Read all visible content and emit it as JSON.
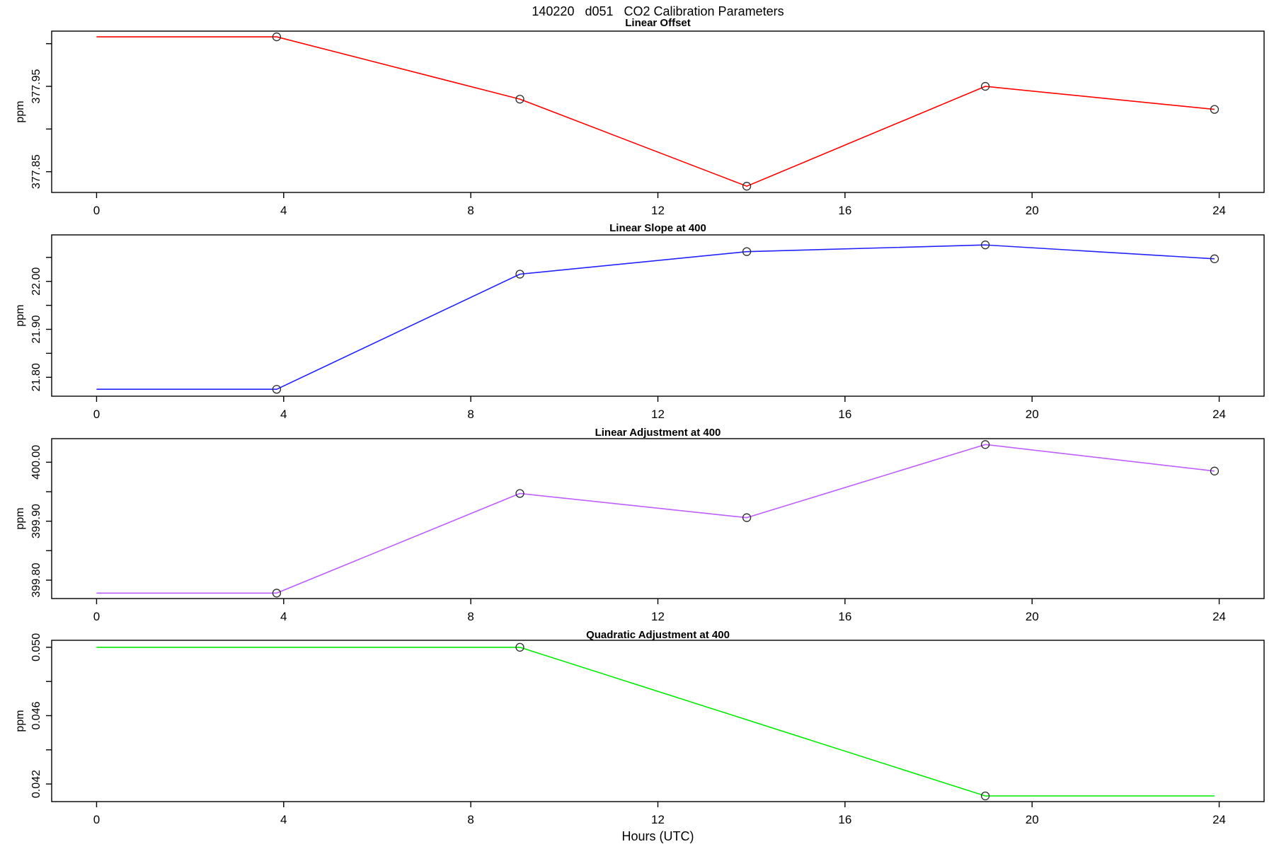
{
  "page": {
    "title": "140220   d051   CO2 Calibration Parameters",
    "xlabel": "Hours (UTC)"
  },
  "chart_data": [
    {
      "type": "line",
      "title": "Linear Offset",
      "ylabel": "ppm",
      "color": "#ff0000",
      "series_name": "linear-offset-line",
      "grid": false,
      "legend": "none",
      "xlim": [
        -0.96,
        24.96
      ],
      "ylim": [
        377.8257,
        378.0147
      ],
      "xticks": [
        0,
        4,
        8,
        12,
        16,
        20,
        24
      ],
      "yticks": [
        {
          "value": 377.85,
          "label": "377.85"
        },
        {
          "value": 377.9,
          "label": ""
        },
        {
          "value": 377.95,
          "label": "377.95"
        },
        {
          "value": 378.0,
          "label": ""
        }
      ],
      "points": [
        {
          "x": 0.0,
          "y": 378.008,
          "marker": false
        },
        {
          "x": 3.85,
          "y": 378.008,
          "marker": true
        },
        {
          "x": 9.05,
          "y": 377.935,
          "marker": true
        },
        {
          "x": 13.9,
          "y": 377.833,
          "marker": true
        },
        {
          "x": 19.0,
          "y": 377.95,
          "marker": true
        },
        {
          "x": 23.9,
          "y": 377.923,
          "marker": true
        }
      ]
    },
    {
      "type": "line",
      "title": "Linear Slope at 400",
      "ylabel": "ppm",
      "color": "#2222ff",
      "series_name": "linear-slope-line",
      "grid": false,
      "legend": "none",
      "xlim": [
        -0.96,
        24.96
      ],
      "ylim": [
        21.7606,
        22.0969
      ],
      "xticks": [
        0,
        4,
        8,
        12,
        16,
        20,
        24
      ],
      "yticks": [
        {
          "value": 21.8,
          "label": "21.80"
        },
        {
          "value": 21.85,
          "label": ""
        },
        {
          "value": 21.9,
          "label": "21.90"
        },
        {
          "value": 21.95,
          "label": ""
        },
        {
          "value": 22.0,
          "label": "22.00"
        },
        {
          "value": 22.05,
          "label": ""
        }
      ],
      "points": [
        {
          "x": 0.0,
          "y": 21.775,
          "marker": false
        },
        {
          "x": 3.85,
          "y": 21.775,
          "marker": true
        },
        {
          "x": 9.05,
          "y": 22.015,
          "marker": true
        },
        {
          "x": 13.9,
          "y": 22.062,
          "marker": true
        },
        {
          "x": 19.0,
          "y": 22.076,
          "marker": true
        },
        {
          "x": 23.9,
          "y": 22.047,
          "marker": true
        }
      ]
    },
    {
      "type": "line",
      "title": "Linear Adjustment at 400",
      "ylabel": "ppm",
      "color": "#bf5fff",
      "series_name": "linear-adjustment-line",
      "grid": false,
      "legend": "none",
      "xlim": [
        -0.96,
        24.96
      ],
      "ylim": [
        399.7688,
        400.04
      ],
      "xticks": [
        0,
        4,
        8,
        12,
        16,
        20,
        24
      ],
      "yticks": [
        {
          "value": 399.8,
          "label": "399.80"
        },
        {
          "value": 399.85,
          "label": ""
        },
        {
          "value": 399.9,
          "label": "399.90"
        },
        {
          "value": 399.95,
          "label": ""
        },
        {
          "value": 400.0,
          "label": "400.00"
        }
      ],
      "points": [
        {
          "x": 0.0,
          "y": 399.778,
          "marker": false
        },
        {
          "x": 3.85,
          "y": 399.778,
          "marker": true
        },
        {
          "x": 9.05,
          "y": 399.947,
          "marker": true
        },
        {
          "x": 13.9,
          "y": 399.906,
          "marker": true
        },
        {
          "x": 19.0,
          "y": 400.03,
          "marker": true
        },
        {
          "x": 23.9,
          "y": 399.985,
          "marker": true
        }
      ]
    },
    {
      "type": "line",
      "title": "Quadratic Adjustment at 400",
      "ylabel": "ppm",
      "color": "#00ee00",
      "series_name": "quadratic-adjustment-line",
      "grid": false,
      "legend": "none",
      "xlim": [
        -0.96,
        24.96
      ],
      "ylim": [
        0.04097,
        0.05041
      ],
      "xticks": [
        0,
        4,
        8,
        12,
        16,
        20,
        24
      ],
      "yticks": [
        {
          "value": 0.042,
          "label": "0.042"
        },
        {
          "value": 0.044,
          "label": ""
        },
        {
          "value": 0.046,
          "label": "0.046"
        },
        {
          "value": 0.048,
          "label": ""
        },
        {
          "value": 0.05,
          "label": "0.050"
        }
      ],
      "points": [
        {
          "x": 0.0,
          "y": 0.05,
          "marker": false
        },
        {
          "x": 9.05,
          "y": 0.05,
          "marker": true
        },
        {
          "x": 19.0,
          "y": 0.0413,
          "marker": true
        },
        {
          "x": 23.9,
          "y": 0.0413,
          "marker": false
        }
      ]
    }
  ]
}
